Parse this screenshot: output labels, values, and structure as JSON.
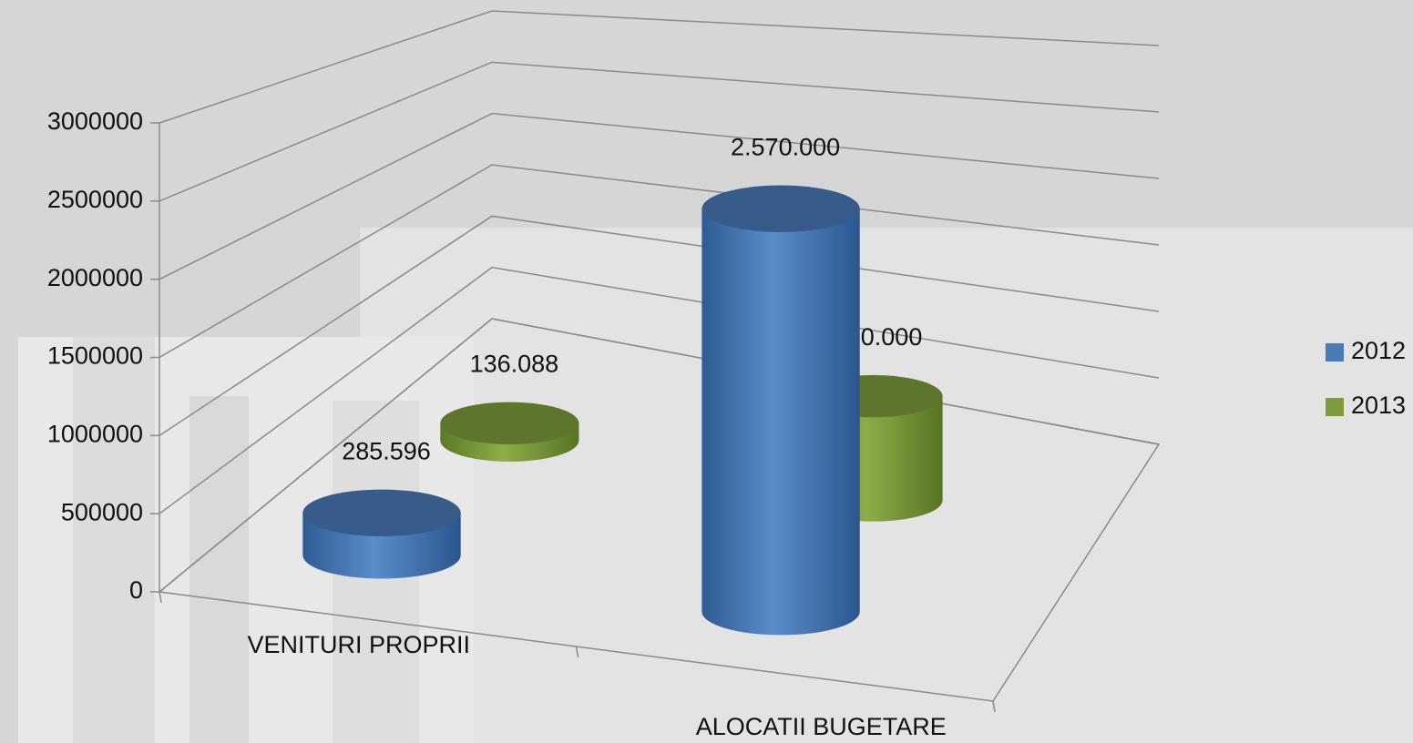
{
  "chart_data": {
    "type": "bar3d",
    "categories": [
      "VENITURI PROPRII",
      "ALOCATII BUGETARE"
    ],
    "series": [
      {
        "name": "2012",
        "color": "#4a7bb7",
        "values": [
          285596,
          2570000
        ],
        "value_labels": [
          "285.596",
          "2.570.000"
        ]
      },
      {
        "name": "2013",
        "color": "#7d9c3c",
        "values": [
          136088,
          750000
        ],
        "value_labels": [
          "136.088",
          "750.000"
        ]
      }
    ],
    "ylim": [
      0,
      3000000
    ],
    "yticks": [
      0,
      500000,
      1000000,
      1500000,
      2000000,
      2500000,
      3000000
    ],
    "grid": true,
    "legend": "right"
  }
}
